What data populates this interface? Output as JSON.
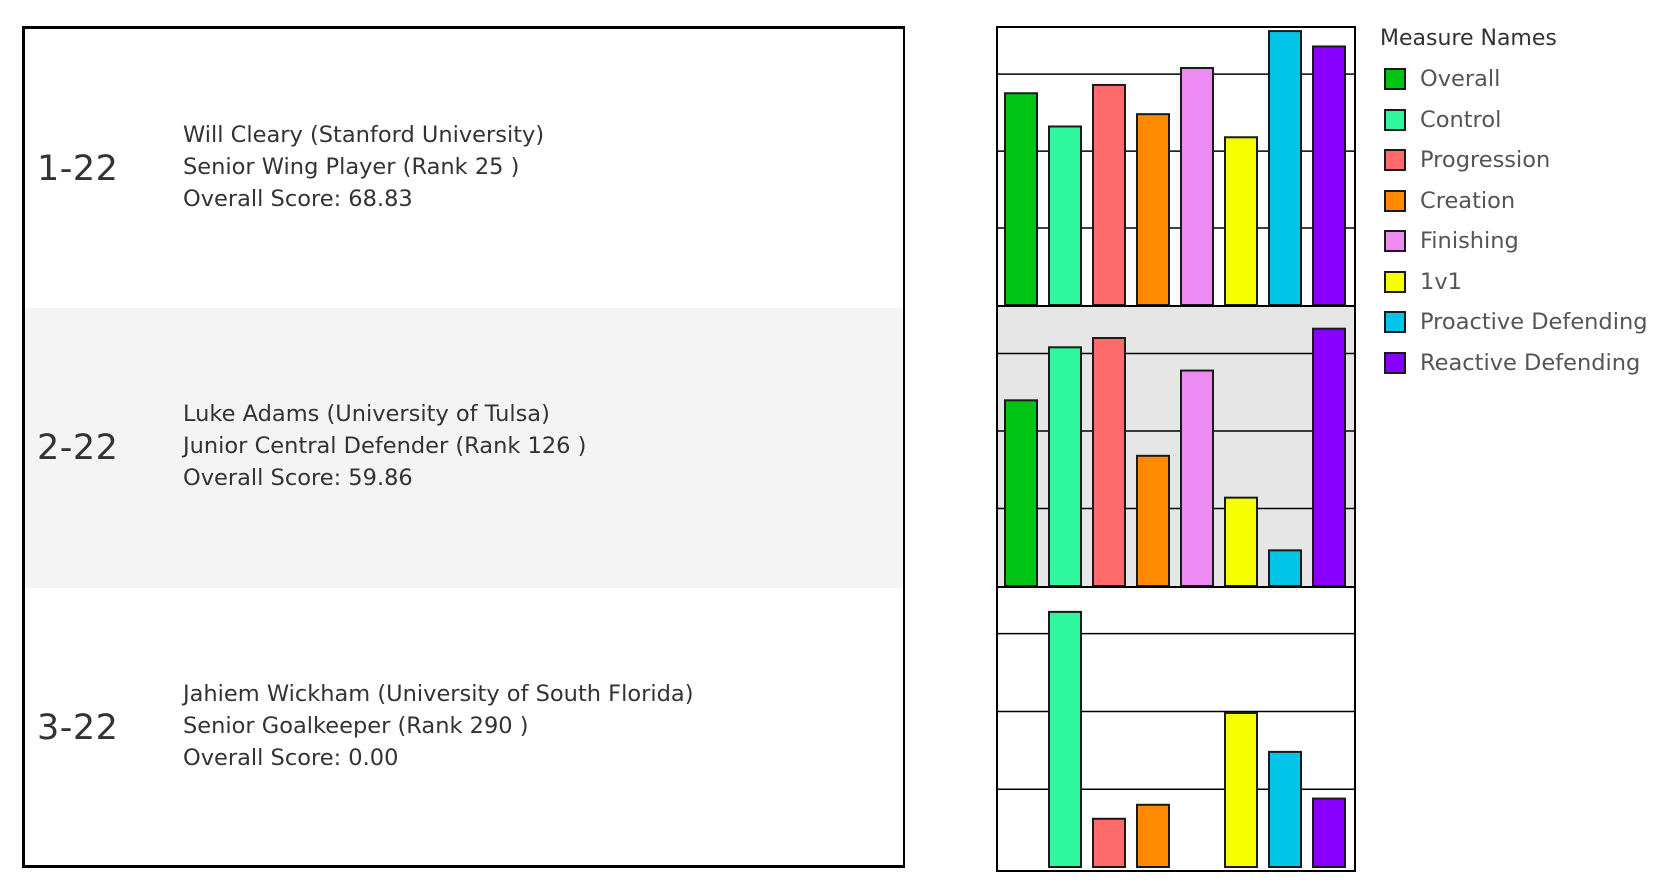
{
  "players": [
    {
      "id": "1-22",
      "name_line": "Will Cleary (Stanford University)",
      "role_line": "Senior Wing Player  (Rank 25 )",
      "score_line": "Overall Score: 68.83"
    },
    {
      "id": "2-22",
      "name_line": "Luke Adams (University of Tulsa)",
      "role_line": "Junior Central Defender  (Rank 126 )",
      "score_line": "Overall Score: 59.86"
    },
    {
      "id": "3-22",
      "name_line": "Jahiem Wickham (University of South Florida)",
      "role_line": "Senior Goalkeeper  (Rank 290 )",
      "score_line": "Overall Score: 0.00"
    }
  ],
  "legend": {
    "title": "Measure Names",
    "items": [
      {
        "label": "Overall",
        "color": "#00c414"
      },
      {
        "label": "Control",
        "color": "#2ef79e"
      },
      {
        "label": "Progression",
        "color": "#ff6b6b"
      },
      {
        "label": "Creation",
        "color": "#ff8a00"
      },
      {
        "label": "Finishing",
        "color": "#ed8bf2"
      },
      {
        "label": "1v1",
        "color": "#f6ff00"
      },
      {
        "label": "Proactive Defending",
        "color": "#00c5e6"
      },
      {
        "label": "Reactive Defending",
        "color": "#8800ff"
      }
    ]
  },
  "chart_data": {
    "type": "bar",
    "title": "",
    "xlabel": "",
    "ylabel": "",
    "ylim": [
      0,
      90
    ],
    "gridlines": [
      25,
      50,
      75
    ],
    "categories": [
      "Overall",
      "Control",
      "Progression",
      "Creation",
      "Finishing",
      "1v1",
      "Proactive Defending",
      "Reactive Defending"
    ],
    "panels": [
      {
        "player_id": "1-22",
        "values": [
          68.8,
          58,
          71.5,
          62,
          77,
          54.5,
          89,
          84
        ]
      },
      {
        "player_id": "2-22",
        "values": [
          59.9,
          77,
          80,
          42,
          69.5,
          28.5,
          11.5,
          83
        ]
      },
      {
        "player_id": "3-22",
        "values": [
          0,
          82,
          15.5,
          20,
          0,
          49.5,
          37,
          22
        ]
      }
    ]
  }
}
